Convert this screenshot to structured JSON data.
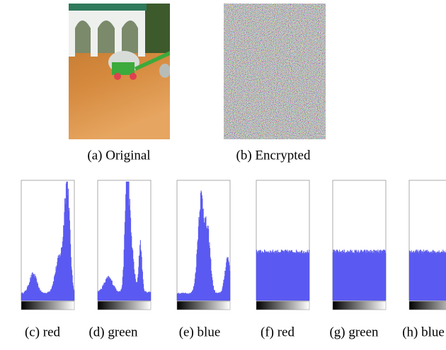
{
  "figure": {
    "images": [
      {
        "caption": "(a) Original"
      },
      {
        "caption": "(b) Encrypted"
      }
    ],
    "histograms": [
      {
        "caption": "(c) red"
      },
      {
        "caption": "(d) green"
      },
      {
        "caption": "(e) blue"
      },
      {
        "caption": "(f) red"
      },
      {
        "caption": "(g) green"
      },
      {
        "caption": "(h) blue"
      }
    ]
  }
}
